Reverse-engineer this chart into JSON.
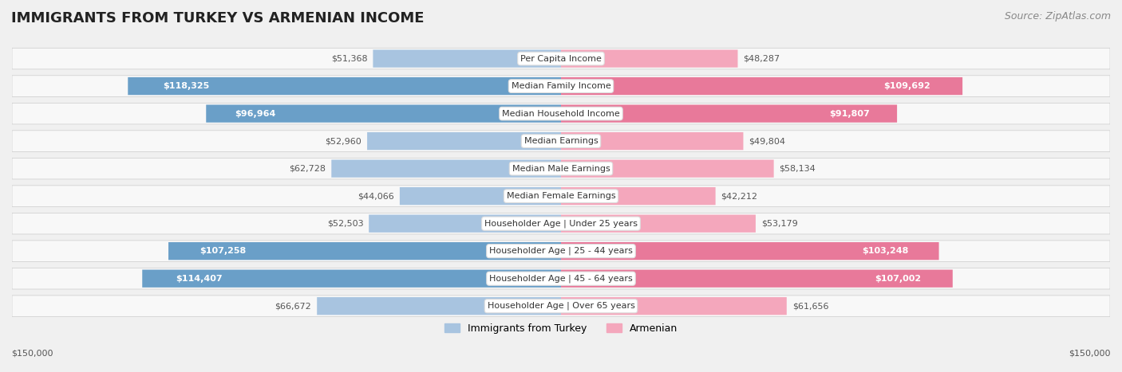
{
  "title": "IMMIGRANTS FROM TURKEY VS ARMENIAN INCOME",
  "source": "Source: ZipAtlas.com",
  "categories": [
    "Per Capita Income",
    "Median Family Income",
    "Median Household Income",
    "Median Earnings",
    "Median Male Earnings",
    "Median Female Earnings",
    "Householder Age | Under 25 years",
    "Householder Age | 25 - 44 years",
    "Householder Age | 45 - 64 years",
    "Householder Age | Over 65 years"
  ],
  "turkey_values": [
    51368,
    118325,
    96964,
    52960,
    62728,
    44066,
    52503,
    107258,
    114407,
    66672
  ],
  "armenian_values": [
    48287,
    109692,
    91807,
    49804,
    58134,
    42212,
    53179,
    103248,
    107002,
    61656
  ],
  "turkey_labels": [
    "$51,368",
    "$118,325",
    "$96,964",
    "$52,960",
    "$62,728",
    "$44,066",
    "$52,503",
    "$107,258",
    "$114,407",
    "$66,672"
  ],
  "armenian_labels": [
    "$48,287",
    "$109,692",
    "$91,807",
    "$49,804",
    "$58,134",
    "$42,212",
    "$53,179",
    "$103,248",
    "$107,002",
    "$61,656"
  ],
  "max_value": 150000,
  "turkey_color_light": "#a8c4e0",
  "turkey_color_dark": "#6a9fc8",
  "armenian_color_light": "#f4a7bc",
  "armenian_color_dark": "#e8799a",
  "background_color": "#f0f0f0",
  "row_bg_color": "#f8f8f8",
  "label_bg_color": "#ffffff",
  "xlabel_left": "$150,000",
  "xlabel_right": "$150,000",
  "legend_turkey": "Immigrants from Turkey",
  "legend_armenian": "Armenian",
  "title_fontsize": 13,
  "source_fontsize": 9,
  "bar_label_fontsize": 8,
  "category_fontsize": 8
}
